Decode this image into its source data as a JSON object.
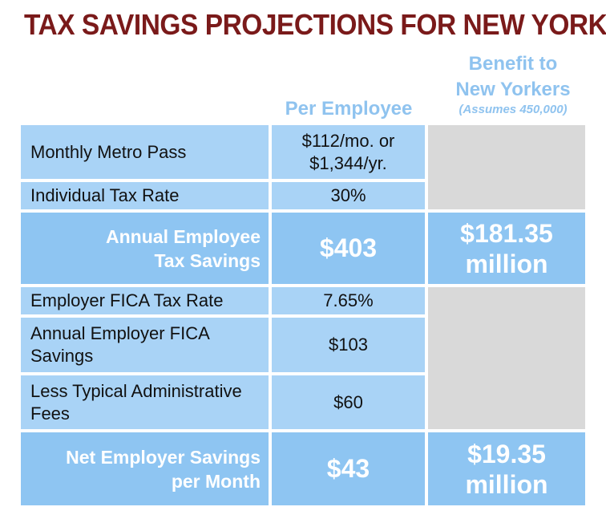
{
  "title": "TAX SAVINGS PROJECTIONS FOR NEW YORK",
  "headers": {
    "per_employee": "Per Employee",
    "benefit_line1": "Benefit to",
    "benefit_line2": "New Yorkers",
    "benefit_note": "(Assumes 450,000)"
  },
  "rows": {
    "metro_pass": {
      "label": "Monthly Metro Pass",
      "value_line1": "$112/mo. or",
      "value_line2": "$1,344/yr."
    },
    "tax_rate": {
      "label": "Individual Tax Rate",
      "value": "30%"
    },
    "employee_savings": {
      "label_line1": "Annual Employee",
      "label_line2": "Tax Savings",
      "value": "$403",
      "benefit_line1": "$181.35",
      "benefit_line2": "million"
    },
    "fica_rate": {
      "label": "Employer FICA Tax Rate",
      "value": "7.65%"
    },
    "fica_savings": {
      "label_line1": "Annual Employer FICA",
      "label_line2": "Savings",
      "value": "$103"
    },
    "admin_fees": {
      "label_line1": "Less Typical Administrative",
      "label_line2": "Fees",
      "value": "$60"
    },
    "net_savings": {
      "label_line1": "Net Employer Savings",
      "label_line2": "per Month",
      "value": "$43",
      "benefit_line1": "$19.35",
      "benefit_line2": "million"
    }
  },
  "colors": {
    "title": "#7a1a1a",
    "cell": "#a9d3f6",
    "highlight_text": "#ffffff",
    "gray": "#d9d9d9"
  }
}
